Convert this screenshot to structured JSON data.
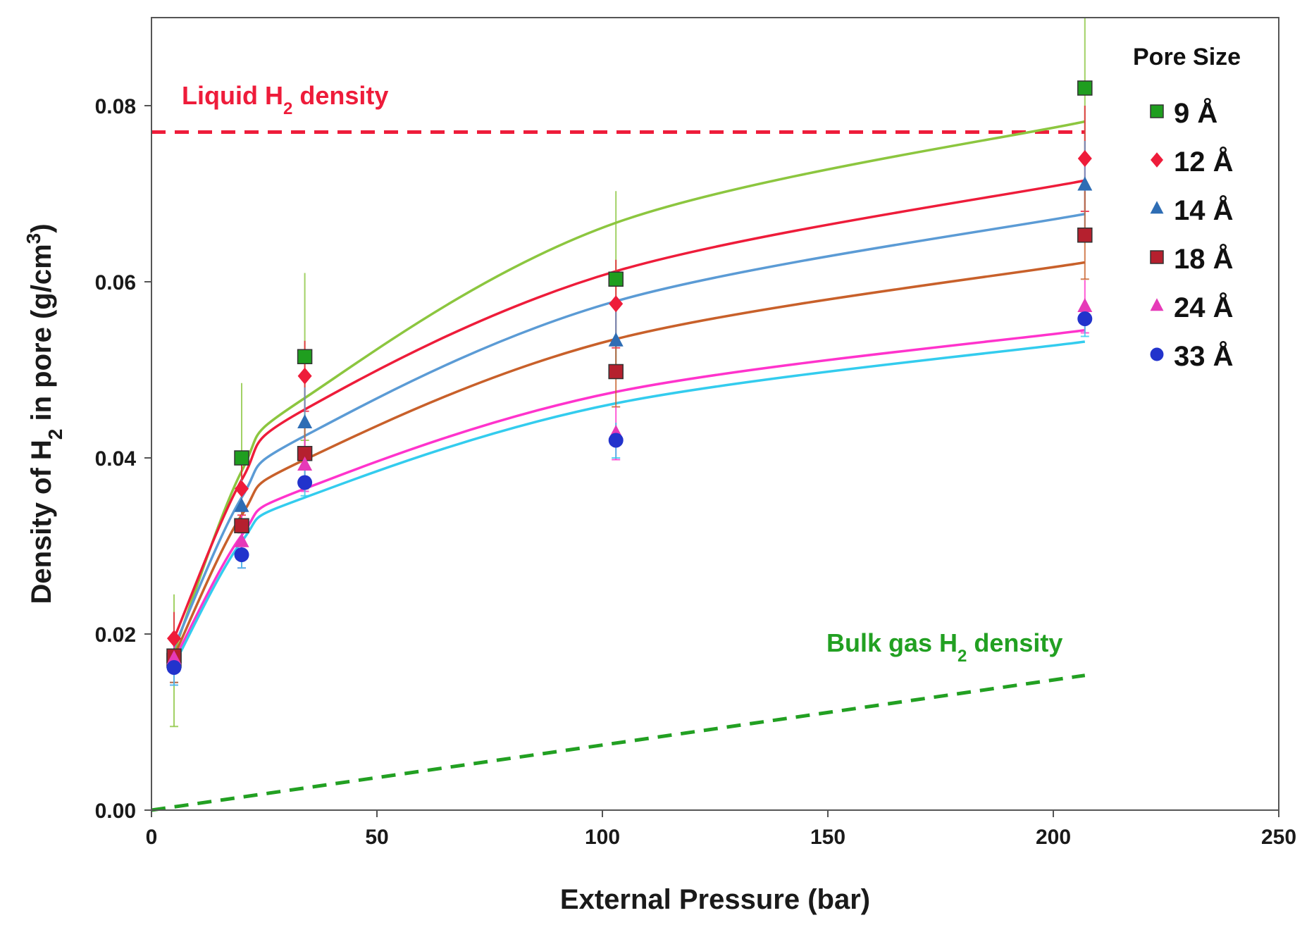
{
  "chart_data": {
    "type": "scatter",
    "title": "",
    "xlabel": "External Pressure (bar)",
    "ylabel": "Density of H2 in pore (g/cm3)",
    "ylabel_parts": {
      "a": "Density of H",
      "sub": "2",
      "b": " in pore (g/cm",
      "sup": "3",
      "c": ")"
    },
    "xlim": [
      0,
      250
    ],
    "ylim": [
      0,
      0.09
    ],
    "x_ticks": [
      0,
      50,
      100,
      150,
      200,
      250
    ],
    "x_tick_labels": [
      "0",
      "50",
      "100",
      "150",
      "200",
      "250"
    ],
    "y_ticks": [
      0,
      0.02,
      0.04,
      0.06,
      0.08
    ],
    "y_tick_labels": [
      "0.00",
      "0.02",
      "0.04",
      "0.06",
      "0.08"
    ],
    "grid": false,
    "legend": {
      "title": "Pore Size",
      "position": "top-right"
    },
    "x": [
      5,
      20,
      34,
      103,
      207
    ],
    "series": [
      {
        "name": "9 Å",
        "marker": "square",
        "color": "#1f9e1f",
        "line_color": "#8cc63f",
        "values": [
          0.017,
          0.04,
          0.0515,
          0.0603,
          0.082
        ],
        "errors": [
          0.0075,
          0.0085,
          0.0095,
          0.01,
          0.008
        ],
        "fit": [
          0.018,
          0.0385,
          0.0468,
          0.0667,
          0.0782
        ]
      },
      {
        "name": "12 Å",
        "marker": "diamond",
        "color": "#ee1c3a",
        "line_color": "#ee1c3a",
        "values": [
          0.0195,
          0.0365,
          0.0493,
          0.0575,
          0.074
        ],
        "errors": [
          0.003,
          0.003,
          0.004,
          0.005,
          0.006
        ],
        "fit": [
          0.0195,
          0.0375,
          0.0455,
          0.0612,
          0.0715
        ]
      },
      {
        "name": "14 Å",
        "marker": "triangle",
        "color": "#2e6db4",
        "line_color": "#5b9bd5",
        "values": [
          0.0175,
          0.0345,
          0.044,
          0.0533,
          0.071
        ],
        "errors": [
          0.003,
          0.003,
          0.004,
          0.004,
          0.005
        ],
        "fit": [
          0.0185,
          0.0355,
          0.0425,
          0.0578,
          0.0677
        ]
      },
      {
        "name": "18 Å",
        "marker": "square",
        "color": "#b5202e",
        "line_color": "#c8602a",
        "values": [
          0.0175,
          0.0323,
          0.0405,
          0.0498,
          0.0653
        ],
        "errors": [
          0.003,
          0.003,
          0.004,
          0.004,
          0.005
        ],
        "fit": [
          0.0175,
          0.0335,
          0.0398,
          0.0535,
          0.0622
        ]
      },
      {
        "name": "24 Å",
        "marker": "triangle",
        "color": "#e63ab8",
        "line_color": "#ff33cc",
        "values": [
          0.0172,
          0.0305,
          0.0392,
          0.0428,
          0.0572
        ],
        "errors": [
          0.003,
          0.003,
          0.003,
          0.003,
          0.003
        ],
        "fit": [
          0.017,
          0.0312,
          0.0365,
          0.0475,
          0.0545
        ]
      },
      {
        "name": "33 Å",
        "marker": "circle",
        "color": "#2233cc",
        "line_color": "#33ccee",
        "values": [
          0.0162,
          0.029,
          0.0372,
          0.042,
          0.0558
        ],
        "errors": [
          0.002,
          0.0015,
          0.0015,
          0.002,
          0.002
        ],
        "fit": [
          0.0165,
          0.0305,
          0.0355,
          0.0462,
          0.0532
        ]
      }
    ],
    "reference_lines": [
      {
        "name": "Liquid H2 density",
        "label_a": "Liquid H",
        "label_sub": "2",
        "label_b": " density",
        "color": "#ee1c3a",
        "x": [
          0,
          207
        ],
        "y": [
          0.077,
          0.077
        ],
        "style": "dashed"
      },
      {
        "name": "Bulk gas H2 density",
        "label_a": "Bulk gas H",
        "label_sub": "2",
        "label_b": " density",
        "color": "#22a022",
        "x": [
          0,
          207
        ],
        "y": [
          0,
          0.0153
        ],
        "style": "dashed"
      }
    ]
  }
}
